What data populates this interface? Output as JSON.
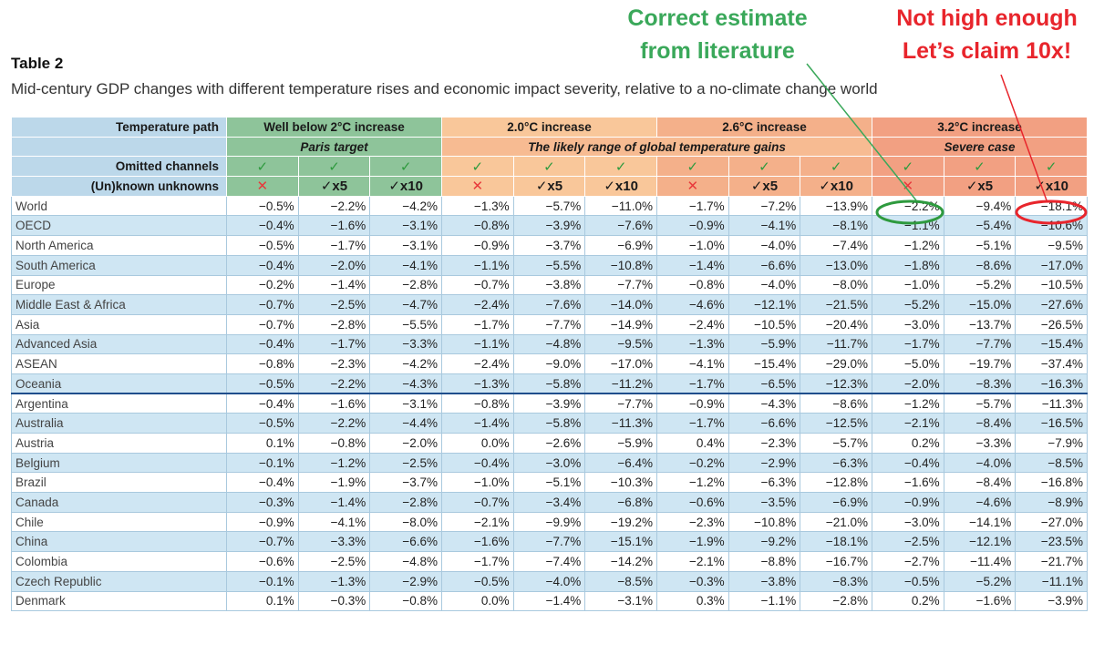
{
  "annotations": {
    "green_line1": "Correct estimate",
    "green_line2": "from literature",
    "red_line1": "Not high enough",
    "red_line2": "Let’s claim 10x!",
    "green_color": "#3aa85a",
    "red_color": "#e8252c"
  },
  "table": {
    "title": "Table 2",
    "subtitle": "Mid-century GDP changes with different temperature rises and economic impact severity, relative to a no-climate change world",
    "header": {
      "path_label": "Temperature path",
      "groups": [
        "Well below 2°C increase",
        "2.0°C increase",
        "2.6°C increase",
        "3.2°C increase"
      ],
      "sub_paris": "Paris target",
      "sub_likely": "The likely range of global temperature gains",
      "sub_severe": "Severe case",
      "omitted_label": "Omitted channels",
      "unknowns_label": "(Un)known unknowns",
      "check_symbol": "✓",
      "cross_symbol": "✕",
      "x5_label": "✓x5",
      "x10_label": "✓x10"
    },
    "rows": [
      {
        "name": "World",
        "values": [
          "−0.5%",
          "−2.2%",
          "−4.2%",
          "−1.3%",
          "−5.7%",
          "−11.0%",
          "−1.7%",
          "−7.2%",
          "−13.9%",
          "−2.2%",
          "−9.4%",
          "−18.1%"
        ]
      },
      {
        "name": "OECD",
        "values": [
          "−0.4%",
          "−1.6%",
          "−3.1%",
          "−0.8%",
          "−3.9%",
          "−7.6%",
          "−0.9%",
          "−4.1%",
          "−8.1%",
          "−1.1%",
          "−5.4%",
          "−10.6%"
        ]
      },
      {
        "name": "North America",
        "values": [
          "−0.5%",
          "−1.7%",
          "−3.1%",
          "−0.9%",
          "−3.7%",
          "−6.9%",
          "−1.0%",
          "−4.0%",
          "−7.4%",
          "−1.2%",
          "−5.1%",
          "−9.5%"
        ]
      },
      {
        "name": "South America",
        "values": [
          "−0.4%",
          "−2.0%",
          "−4.1%",
          "−1.1%",
          "−5.5%",
          "−10.8%",
          "−1.4%",
          "−6.6%",
          "−13.0%",
          "−1.8%",
          "−8.6%",
          "−17.0%"
        ]
      },
      {
        "name": "Europe",
        "values": [
          "−0.2%",
          "−1.4%",
          "−2.8%",
          "−0.7%",
          "−3.8%",
          "−7.7%",
          "−0.8%",
          "−4.0%",
          "−8.0%",
          "−1.0%",
          "−5.2%",
          "−10.5%"
        ]
      },
      {
        "name": "Middle East & Africa",
        "values": [
          "−0.7%",
          "−2.5%",
          "−4.7%",
          "−2.4%",
          "−7.6%",
          "−14.0%",
          "−4.6%",
          "−12.1%",
          "−21.5%",
          "−5.2%",
          "−15.0%",
          "−27.6%"
        ]
      },
      {
        "name": "Asia",
        "values": [
          "−0.7%",
          "−2.8%",
          "−5.5%",
          "−1.7%",
          "−7.7%",
          "−14.9%",
          "−2.4%",
          "−10.5%",
          "−20.4%",
          "−3.0%",
          "−13.7%",
          "−26.5%"
        ]
      },
      {
        "name": "Advanced Asia",
        "values": [
          "−0.4%",
          "−1.7%",
          "−3.3%",
          "−1.1%",
          "−4.8%",
          "−9.5%",
          "−1.3%",
          "−5.9%",
          "−11.7%",
          "−1.7%",
          "−7.7%",
          "−15.4%"
        ]
      },
      {
        "name": "ASEAN",
        "values": [
          "−0.8%",
          "−2.3%",
          "−4.2%",
          "−2.4%",
          "−9.0%",
          "−17.0%",
          "−4.1%",
          "−15.4%",
          "−29.0%",
          "−5.0%",
          "−19.7%",
          "−37.4%"
        ]
      },
      {
        "name": "Oceania",
        "values": [
          "−0.5%",
          "−2.2%",
          "−4.3%",
          "−1.3%",
          "−5.8%",
          "−11.2%",
          "−1.7%",
          "−6.5%",
          "−12.3%",
          "−2.0%",
          "−8.3%",
          "−16.3%"
        ]
      },
      {
        "name": "Argentina",
        "values": [
          "−0.4%",
          "−1.6%",
          "−3.1%",
          "−0.8%",
          "−3.9%",
          "−7.7%",
          "−0.9%",
          "−4.3%",
          "−8.6%",
          "−1.2%",
          "−5.7%",
          "−11.3%"
        ]
      },
      {
        "name": "Australia",
        "values": [
          "−0.5%",
          "−2.2%",
          "−4.4%",
          "−1.4%",
          "−5.8%",
          "−11.3%",
          "−1.7%",
          "−6.6%",
          "−12.5%",
          "−2.1%",
          "−8.4%",
          "−16.5%"
        ]
      },
      {
        "name": "Austria",
        "values": [
          "0.1%",
          "−0.8%",
          "−2.0%",
          "0.0%",
          "−2.6%",
          "−5.9%",
          "0.4%",
          "−2.3%",
          "−5.7%",
          "0.2%",
          "−3.3%",
          "−7.9%"
        ]
      },
      {
        "name": "Belgium",
        "values": [
          "−0.1%",
          "−1.2%",
          "−2.5%",
          "−0.4%",
          "−3.0%",
          "−6.4%",
          "−0.2%",
          "−2.9%",
          "−6.3%",
          "−0.4%",
          "−4.0%",
          "−8.5%"
        ]
      },
      {
        "name": "Brazil",
        "values": [
          "−0.4%",
          "−1.9%",
          "−3.7%",
          "−1.0%",
          "−5.1%",
          "−10.3%",
          "−1.2%",
          "−6.3%",
          "−12.8%",
          "−1.6%",
          "−8.4%",
          "−16.8%"
        ]
      },
      {
        "name": "Canada",
        "values": [
          "−0.3%",
          "−1.4%",
          "−2.8%",
          "−0.7%",
          "−3.4%",
          "−6.8%",
          "−0.6%",
          "−3.5%",
          "−6.9%",
          "−0.9%",
          "−4.6%",
          "−8.9%"
        ]
      },
      {
        "name": "Chile",
        "values": [
          "−0.9%",
          "−4.1%",
          "−8.0%",
          "−2.1%",
          "−9.9%",
          "−19.2%",
          "−2.3%",
          "−10.8%",
          "−21.0%",
          "−3.0%",
          "−14.1%",
          "−27.0%"
        ]
      },
      {
        "name": "China",
        "values": [
          "−0.7%",
          "−3.3%",
          "−6.6%",
          "−1.6%",
          "−7.7%",
          "−15.1%",
          "−1.9%",
          "−9.2%",
          "−18.1%",
          "−2.5%",
          "−12.1%",
          "−23.5%"
        ]
      },
      {
        "name": "Colombia",
        "values": [
          "−0.6%",
          "−2.5%",
          "−4.8%",
          "−1.7%",
          "−7.4%",
          "−14.2%",
          "−2.1%",
          "−8.8%",
          "−16.7%",
          "−2.7%",
          "−11.4%",
          "−21.7%"
        ]
      },
      {
        "name": "Czech Republic",
        "values": [
          "−0.1%",
          "−1.3%",
          "−2.9%",
          "−0.5%",
          "−4.0%",
          "−8.5%",
          "−0.3%",
          "−3.8%",
          "−8.3%",
          "−0.5%",
          "−5.2%",
          "−11.1%"
        ]
      },
      {
        "name": "Denmark",
        "values": [
          "0.1%",
          "−0.3%",
          "−0.8%",
          "0.0%",
          "−1.4%",
          "−3.1%",
          "0.3%",
          "−1.1%",
          "−2.8%",
          "0.2%",
          "−1.6%",
          "−3.9%"
        ]
      }
    ]
  }
}
